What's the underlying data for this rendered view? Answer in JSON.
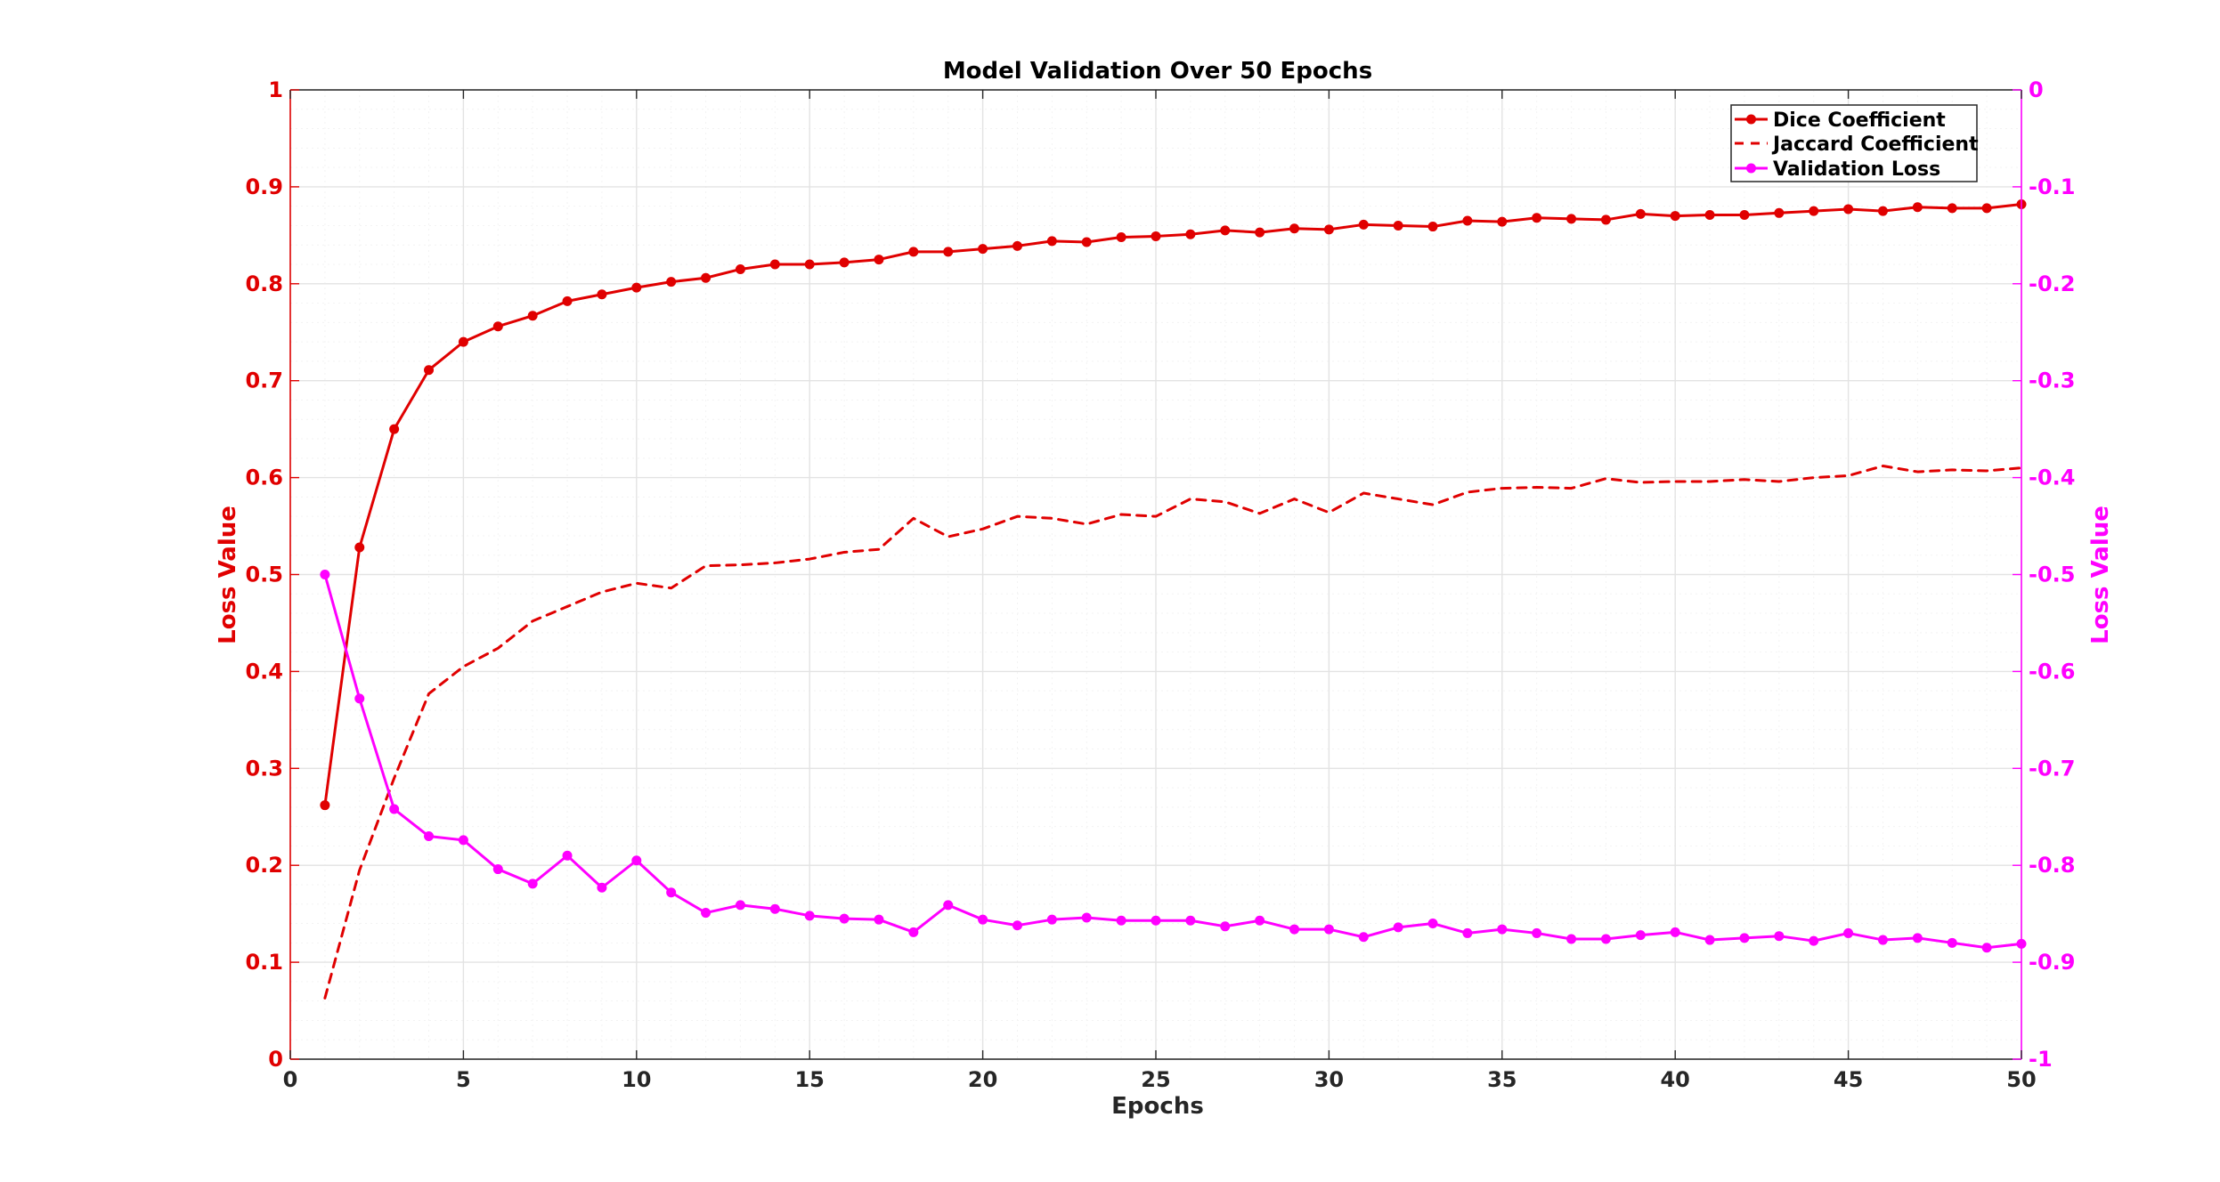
{
  "chart_data": {
    "type": "line",
    "title": "Model Validation Over 50 Epochs",
    "xlabel": "Epochs",
    "ylabel_left": "Loss Value",
    "ylabel_right": "Loss Value",
    "xlim": [
      0,
      50
    ],
    "ylim_left": [
      0,
      1
    ],
    "ylim_right": [
      -1,
      0
    ],
    "x_ticks": [
      "0",
      "5",
      "10",
      "15",
      "20",
      "25",
      "30",
      "35",
      "40",
      "45",
      "50"
    ],
    "y_left_ticks": [
      "0",
      "0.1",
      "0.2",
      "0.3",
      "0.4",
      "0.5",
      "0.6",
      "0.7",
      "0.8",
      "0.9",
      "1"
    ],
    "y_right_ticks": [
      "-1",
      "-0.9",
      "-0.8",
      "-0.7",
      "-0.6",
      "-0.5",
      "-0.4",
      "-0.3",
      "-0.2",
      "-0.1",
      "0"
    ],
    "grid": true,
    "legend_position": "top-right",
    "colors": {
      "left_axis": "#e00000",
      "right_axis": "#ff00ff",
      "grid": "#e3e3e3",
      "frame": "#262626",
      "text": "#262626"
    },
    "x": [
      1,
      2,
      3,
      4,
      5,
      6,
      7,
      8,
      9,
      10,
      11,
      12,
      13,
      14,
      15,
      16,
      17,
      18,
      19,
      20,
      21,
      22,
      23,
      24,
      25,
      26,
      27,
      28,
      29,
      30,
      31,
      32,
      33,
      34,
      35,
      36,
      37,
      38,
      39,
      40,
      41,
      42,
      43,
      44,
      45,
      46,
      47,
      48,
      49,
      50
    ],
    "series": [
      {
        "name": "Dice Coefficient",
        "axis": "left",
        "color": "#e00000",
        "style": "solid-marker",
        "values": [
          0.262,
          0.528,
          0.65,
          0.711,
          0.74,
          0.756,
          0.767,
          0.782,
          0.789,
          0.796,
          0.802,
          0.806,
          0.815,
          0.82,
          0.82,
          0.822,
          0.825,
          0.833,
          0.833,
          0.836,
          0.839,
          0.844,
          0.843,
          0.848,
          0.849,
          0.851,
          0.855,
          0.853,
          0.857,
          0.856,
          0.861,
          0.86,
          0.859,
          0.865,
          0.864,
          0.868,
          0.867,
          0.866,
          0.872,
          0.87,
          0.871,
          0.871,
          0.873,
          0.875,
          0.877,
          0.875,
          0.879,
          0.878,
          0.878,
          0.882
        ]
      },
      {
        "name": "Jaccard Coefficient",
        "axis": "left",
        "color": "#e00000",
        "style": "dashed",
        "values": [
          0.063,
          0.195,
          0.29,
          0.377,
          0.405,
          0.424,
          0.452,
          0.467,
          0.482,
          0.491,
          0.486,
          0.509,
          0.51,
          0.512,
          0.516,
          0.523,
          0.526,
          0.558,
          0.539,
          0.547,
          0.56,
          0.558,
          0.552,
          0.562,
          0.56,
          0.578,
          0.575,
          0.563,
          0.578,
          0.564,
          0.584,
          0.578,
          0.572,
          0.585,
          0.589,
          0.59,
          0.589,
          0.599,
          0.595,
          0.596,
          0.596,
          0.598,
          0.596,
          0.6,
          0.602,
          0.612,
          0.606,
          0.608,
          0.607,
          0.61
        ]
      },
      {
        "name": "Validation Loss",
        "axis": "right",
        "color": "#ff00ff",
        "style": "solid-marker",
        "values": [
          -0.5,
          -0.628,
          -0.742,
          -0.77,
          -0.774,
          -0.804,
          -0.819,
          -0.79,
          -0.823,
          -0.795,
          -0.828,
          -0.849,
          -0.841,
          -0.845,
          -0.852,
          -0.855,
          -0.856,
          -0.869,
          -0.841,
          -0.856,
          -0.862,
          -0.856,
          -0.854,
          -0.857,
          -0.857,
          -0.857,
          -0.863,
          -0.857,
          -0.866,
          -0.866,
          -0.874,
          -0.864,
          -0.86,
          -0.87,
          -0.866,
          -0.87,
          -0.876,
          -0.876,
          -0.872,
          -0.869,
          -0.877,
          -0.875,
          -0.873,
          -0.878,
          -0.87,
          -0.877,
          -0.875,
          -0.88,
          -0.885,
          -0.881
        ]
      }
    ]
  }
}
